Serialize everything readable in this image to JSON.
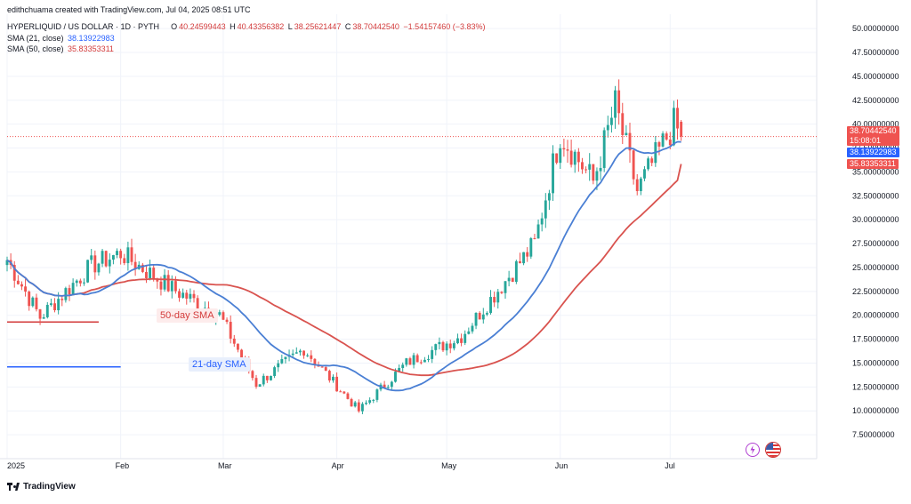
{
  "header": {
    "credit": "edithchuama created with TradingView.com, Jul 04, 2025 08:51 UTC",
    "symbol": "HYPERLIQUID / US DOLLAR · 1D · PYTH",
    "o_label": "O",
    "o_value": "40.24599443",
    "h_label": "H",
    "h_value": "40.43356382",
    "l_label": "L",
    "l_value": "38.25621447",
    "c_label": "C",
    "c_value": "38.70442540",
    "change": "−1.54157460 (−3.83%)",
    "sma21_label": "SMA (21, close)",
    "sma21_value": "38.13922983",
    "sma50_label": "SMA (50, close)",
    "sma50_value": "35.83353311"
  },
  "price_pills": {
    "last": "38.70442540",
    "countdown": "15:08:01",
    "sma21": "38.13922983",
    "sma50": "35.83353311"
  },
  "annotations": {
    "sma50_label": "50-day SMA",
    "sma21_label": "21-day SMA"
  },
  "footer": {
    "brand": "TradingView"
  },
  "colors": {
    "up": "#26a69a",
    "down": "#ef5350",
    "sma21": "#4a7fd4",
    "sma50": "#d9534f",
    "pill_last": "#ef5350",
    "pill_sma21": "#2962ff",
    "pill_sma50": "#ef5350"
  },
  "chart_data": {
    "type": "candlestick",
    "title": "HYPERLIQUID / US DOLLAR · 1D · PYTH",
    "ylim": [
      5.0,
      51.5
    ],
    "y_ticks": [
      "50.00000000",
      "47.50000000",
      "45.00000000",
      "42.50000000",
      "40.00000000",
      "37.50000000",
      "35.00000000",
      "32.50000000",
      "30.00000000",
      "27.50000000",
      "25.00000000",
      "22.50000000",
      "20.00000000",
      "17.50000000",
      "15.00000000",
      "12.50000000",
      "10.00000000",
      "7.50000000"
    ],
    "y_tick_values": [
      50,
      47.5,
      45,
      42.5,
      40,
      37.5,
      35,
      32.5,
      30,
      27.5,
      25,
      22.5,
      20,
      17.5,
      15,
      12.5,
      10,
      7.5
    ],
    "x_ticks": [
      {
        "label": "2025",
        "day": 0
      },
      {
        "label": "Feb",
        "day": 31
      },
      {
        "label": "Mar",
        "day": 59
      },
      {
        "label": "Apr",
        "day": 90
      },
      {
        "label": "May",
        "day": 120
      },
      {
        "label": "Jun",
        "day": 151
      },
      {
        "label": "Jul",
        "day": 181
      }
    ],
    "xlim_days": [
      0,
      221
    ],
    "key_closes": [
      {
        "date": "2025-01-01",
        "price": 25.8
      },
      {
        "date": "2025-01-10",
        "price": 19.8
      },
      {
        "date": "2025-01-24",
        "price": 25.2
      },
      {
        "date": "2025-02-01",
        "price": 26.5
      },
      {
        "date": "2025-02-15",
        "price": 22.8
      },
      {
        "date": "2025-02-28",
        "price": 20.0
      },
      {
        "date": "2025-03-10",
        "price": 12.8
      },
      {
        "date": "2025-03-23",
        "price": 16.5
      },
      {
        "date": "2025-04-07",
        "price": 10.0
      },
      {
        "date": "2025-04-20",
        "price": 15.0
      },
      {
        "date": "2025-05-05",
        "price": 17.8
      },
      {
        "date": "2025-05-25",
        "price": 27.5
      },
      {
        "date": "2025-06-01",
        "price": 39.0
      },
      {
        "date": "2025-06-10",
        "price": 34.0
      },
      {
        "date": "2025-06-16",
        "price": 42.0
      },
      {
        "date": "2025-06-22",
        "price": 33.0
      },
      {
        "date": "2025-07-02",
        "price": 40.0
      },
      {
        "date": "2025-07-04",
        "price": 38.7044254
      }
    ],
    "last_ohlc": {
      "open": 40.24599443,
      "high": 40.43356382,
      "low": 38.25621447,
      "close": 38.7044254
    },
    "sma21_last": 38.13922983,
    "sma50_last": 35.83353311,
    "horizontal_lines": [
      {
        "name": "support-red",
        "price": 19.3,
        "from_day": 0,
        "to_day": 25,
        "color": "#d33b3b"
      },
      {
        "name": "support-blue",
        "price": 14.6,
        "from_day": 0,
        "to_day": 31,
        "color": "#2962ff"
      }
    ]
  }
}
